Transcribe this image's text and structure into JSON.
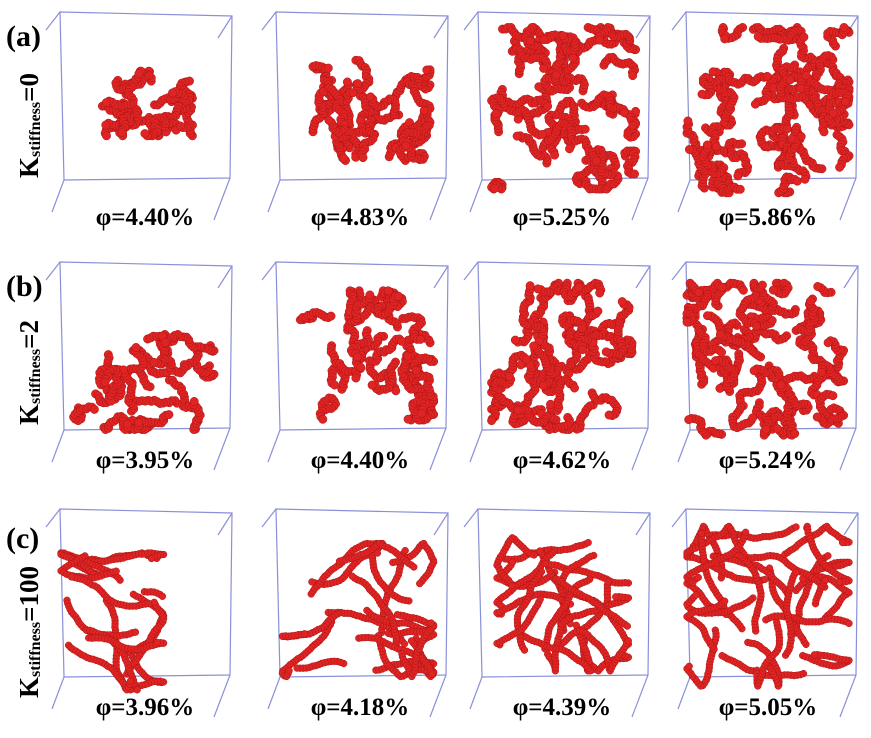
{
  "rows": [
    {
      "label": "(a)",
      "k_symbol": "K",
      "k_sub": "stiffness",
      "k_value": "=0",
      "panels": [
        {
          "caption": "φ=4.40%"
        },
        {
          "caption": "φ=4.83%"
        },
        {
          "caption": "φ=5.25%"
        },
        {
          "caption": "φ=5.86%"
        }
      ]
    },
    {
      "label": "(b)",
      "k_symbol": "K",
      "k_sub": "stiffness",
      "k_value": "=2",
      "panels": [
        {
          "caption": "φ=3.95%"
        },
        {
          "caption": "φ=4.40%"
        },
        {
          "caption": "φ=4.62%"
        },
        {
          "caption": "φ=5.24%"
        }
      ]
    },
    {
      "label": "(c)",
      "k_symbol": "K",
      "k_sub": "stiffness",
      "k_value": "=100",
      "panels": [
        {
          "caption": "φ=3.96%"
        },
        {
          "caption": "φ=4.18%"
        },
        {
          "caption": "φ=4.39%"
        },
        {
          "caption": "φ=5.05%"
        }
      ]
    }
  ],
  "colors": {
    "box_edge": "#8a90d8",
    "polymer": "#e02424",
    "polymer_dark": "#a81414"
  }
}
